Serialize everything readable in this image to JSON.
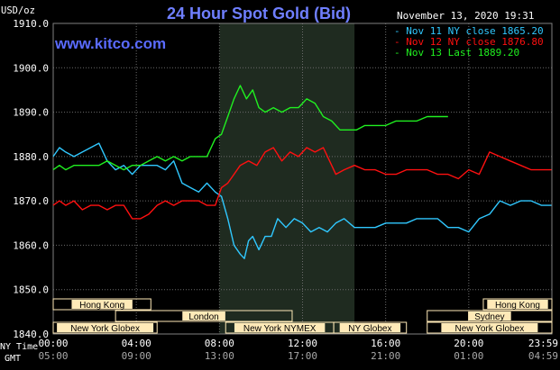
{
  "chart_data": {
    "type": "line",
    "title": "24 Hour Spot Gold (Bid)",
    "watermark": "www.kitco.com",
    "date": "November 13, 2020 19:31",
    "ylabel": "USD/oz",
    "ylim": [
      1840,
      1910
    ],
    "yticks": [
      "1840.0",
      "1850.0",
      "1860.0",
      "1870.0",
      "1880.0",
      "1890.0",
      "1900.0",
      "1910.0"
    ],
    "x_labels_ny": [
      "00:00",
      "04:00",
      "08:00",
      "12:00",
      "16:00",
      "20:00",
      "23:59"
    ],
    "x_labels_gmt": [
      "05:00",
      "09:00",
      "13:00",
      "17:00",
      "21:00",
      "01:00",
      "04:59"
    ],
    "tz_ny": "NY Time",
    "tz_gmt": "GMT",
    "grid": true,
    "legend_position": "top-right",
    "highlight_range_hours": [
      8.0,
      14.5
    ],
    "markets": [
      {
        "label": "Hong Kong",
        "start": 0,
        "end": 4.7,
        "row": 0
      },
      {
        "label": "Hong Kong",
        "start": 20.7,
        "end": 24,
        "row": 0
      },
      {
        "label": "London",
        "start": 3,
        "end": 11.5,
        "row": 1
      },
      {
        "label": "Sydney",
        "start": 18,
        "end": 24,
        "row": 1
      },
      {
        "label": "New York Globex",
        "start": 0,
        "end": 5,
        "row": 2
      },
      {
        "label": "New York NYMEX",
        "start": 8.3,
        "end": 13.5,
        "row": 2
      },
      {
        "label": "NY Globex",
        "start": 13.5,
        "end": 17,
        "row": 2
      },
      {
        "label": "New York Globex",
        "start": 18,
        "end": 24,
        "row": 2
      }
    ],
    "colors": {
      "background": "#000000",
      "grid": "#6b6b6b",
      "highlight": "#1f2b20",
      "title": "#6f7fff",
      "text": "#ffffff",
      "market_fill": "#ffeab8",
      "market_text": "#000000"
    },
    "series": [
      {
        "name": "Nov 11 NY close 1865.20",
        "color": "#30c8ff",
        "x": [
          0,
          0.3,
          0.6,
          1.0,
          1.4,
          1.8,
          2.2,
          2.6,
          3.0,
          3.4,
          3.8,
          4.2,
          4.6,
          5.0,
          5.4,
          5.8,
          6.2,
          6.6,
          7.0,
          7.4,
          7.8,
          8.1,
          8.4,
          8.7,
          9.0,
          9.2,
          9.4,
          9.6,
          9.9,
          10.2,
          10.5,
          10.8,
          11.2,
          11.6,
          12.0,
          12.4,
          12.8,
          13.2,
          13.6,
          14.0,
          14.5,
          15.0,
          15.5,
          16.0,
          16.5,
          17.0,
          17.5,
          18.0,
          18.5,
          19.0,
          19.5,
          20.0,
          20.5,
          21.0,
          21.5,
          22.0,
          22.5,
          23.0,
          23.5,
          23.98
        ],
        "y": [
          1880,
          1882,
          1881,
          1880,
          1881,
          1882,
          1883,
          1879,
          1877,
          1878,
          1876,
          1878,
          1878,
          1878,
          1877,
          1879,
          1874,
          1873,
          1872,
          1874,
          1872,
          1871,
          1866,
          1860,
          1858,
          1857,
          1861,
          1862,
          1859,
          1862,
          1862,
          1866,
          1864,
          1866,
          1865,
          1863,
          1864,
          1863,
          1865,
          1866,
          1864,
          1864,
          1864,
          1865,
          1865,
          1865,
          1866,
          1866,
          1866,
          1864,
          1864,
          1863,
          1866,
          1867,
          1870,
          1869,
          1870,
          1870,
          1869,
          1869
        ]
      },
      {
        "name": "Nov 12 NY close 1876.80",
        "color": "#ff1010",
        "x": [
          0,
          0.3,
          0.6,
          1.0,
          1.4,
          1.8,
          2.2,
          2.6,
          3.0,
          3.4,
          3.8,
          4.2,
          4.6,
          5.0,
          5.4,
          5.8,
          6.2,
          6.6,
          7.0,
          7.4,
          7.8,
          8.1,
          8.4,
          8.7,
          9.0,
          9.4,
          9.8,
          10.2,
          10.6,
          11.0,
          11.4,
          11.8,
          12.2,
          12.6,
          13.0,
          13.3,
          13.6,
          14.0,
          14.5,
          15.0,
          15.5,
          16.0,
          16.5,
          17.0,
          17.5,
          18.0,
          18.5,
          19.0,
          19.5,
          20.0,
          20.5,
          21.0,
          21.5,
          22.0,
          22.5,
          23.0,
          23.5,
          23.98
        ],
        "y": [
          1869,
          1870,
          1869,
          1870,
          1868,
          1869,
          1869,
          1868,
          1869,
          1869,
          1866,
          1866,
          1867,
          1869,
          1870,
          1869,
          1870,
          1870,
          1870,
          1869,
          1869,
          1873,
          1874,
          1876,
          1878,
          1879,
          1878,
          1881,
          1882,
          1879,
          1881,
          1880,
          1882,
          1881,
          1882,
          1879,
          1876,
          1877,
          1878,
          1877,
          1877,
          1876,
          1876,
          1877,
          1877,
          1877,
          1876,
          1876,
          1875,
          1877,
          1876,
          1881,
          1880,
          1879,
          1878,
          1877,
          1877,
          1877
        ]
      },
      {
        "name": "Nov 13 Last 1889.20",
        "color": "#20f020",
        "x": [
          0,
          0.3,
          0.6,
          1.0,
          1.4,
          1.8,
          2.2,
          2.6,
          3.0,
          3.4,
          3.8,
          4.2,
          4.6,
          5.0,
          5.4,
          5.8,
          6.2,
          6.6,
          7.0,
          7.4,
          7.8,
          8.1,
          8.4,
          8.7,
          9.0,
          9.3,
          9.6,
          9.9,
          10.2,
          10.6,
          11.0,
          11.4,
          11.8,
          12.2,
          12.6,
          13.0,
          13.4,
          13.8,
          14.2,
          14.6,
          15.0,
          15.5,
          16.0,
          16.5,
          17.0,
          17.5,
          18.0,
          18.5,
          19.0
        ],
        "y": [
          1877,
          1878,
          1877,
          1878,
          1878,
          1878,
          1878,
          1879,
          1878,
          1877,
          1878,
          1878,
          1879,
          1880,
          1879,
          1880,
          1879,
          1880,
          1880,
          1880,
          1884,
          1885,
          1889,
          1893,
          1896,
          1893,
          1895,
          1891,
          1890,
          1891,
          1890,
          1891,
          1891,
          1893,
          1892,
          1889,
          1888,
          1886,
          1886,
          1886,
          1887,
          1887,
          1887,
          1888,
          1888,
          1888,
          1889,
          1889,
          1889
        ]
      }
    ]
  }
}
